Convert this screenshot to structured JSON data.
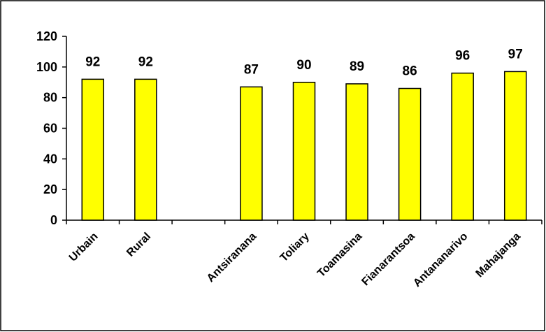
{
  "chart_data": {
    "type": "bar",
    "title": "",
    "xlabel": "",
    "ylabel": "",
    "ylim": [
      0,
      120
    ],
    "yticks": [
      0,
      20,
      40,
      60,
      80,
      100,
      120
    ],
    "grid": false,
    "legend": "none",
    "categories": [
      "Urbain",
      "Rural",
      "",
      "Antsiranana",
      "Toliary",
      "Toamasina",
      "Fianarantsoa",
      "Antananarivo",
      "Mahajanga"
    ],
    "values": [
      92,
      92,
      null,
      87,
      90,
      89,
      86,
      96,
      97
    ],
    "data_labels": [
      "92",
      "92",
      "",
      "87",
      "90",
      "89",
      "86",
      "96",
      "97"
    ]
  },
  "colors": {
    "bar_fill": "#ffff00",
    "bar_stroke": "#000000",
    "axis": "#000000",
    "frame": "#000000",
    "background": "#ffffff"
  }
}
